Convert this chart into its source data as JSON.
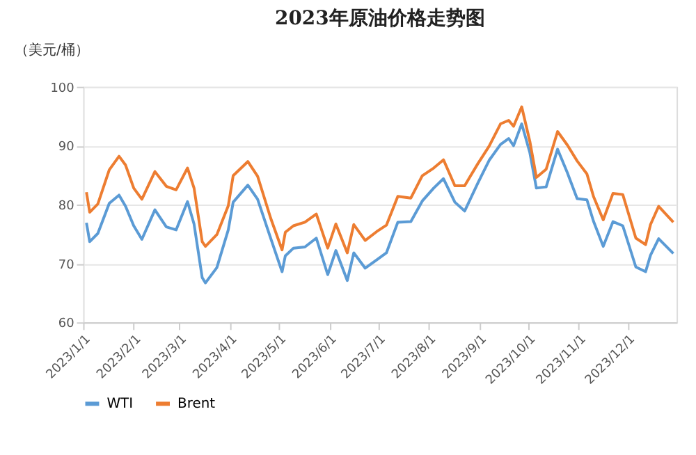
{
  "chart_data": {
    "type": "line",
    "title": "2023年原油价格走势图",
    "ylabel": "（美元/桶）",
    "xlim": [
      "2023-01-01",
      "2023-12-31"
    ],
    "xticks": [
      {
        "value": "2023-01-01",
        "label": "2023/1/1"
      },
      {
        "value": "2023-02-01",
        "label": "2023/2/1"
      },
      {
        "value": "2023-03-01",
        "label": "2023/3/1"
      },
      {
        "value": "2023-04-01",
        "label": "2023/4/1"
      },
      {
        "value": "2023-05-01",
        "label": "2023/5/1"
      },
      {
        "value": "2023-06-01",
        "label": "2023/6/1"
      },
      {
        "value": "2023-07-01",
        "label": "2023/7/1"
      },
      {
        "value": "2023-08-01",
        "label": "2023/8/1"
      },
      {
        "value": "2023-09-01",
        "label": "2023/9/1"
      },
      {
        "value": "2023-10-01",
        "label": "2023/10/1"
      },
      {
        "value": "2023-11-01",
        "label": "2023/11/1"
      },
      {
        "value": "2023-12-01",
        "label": "2023/12/1"
      }
    ],
    "ylim": [
      60,
      100
    ],
    "yticks": [
      60,
      70,
      80,
      90,
      100
    ],
    "grid": "y",
    "legend": "bottom",
    "marker": "none",
    "line_style": "solid",
    "x": [
      "2023-01-03",
      "2023-01-05",
      "2023-01-10",
      "2023-01-17",
      "2023-01-23",
      "2023-01-27",
      "2023-02-01",
      "2023-02-06",
      "2023-02-14",
      "2023-02-21",
      "2023-02-27",
      "2023-03-06",
      "2023-03-10",
      "2023-03-15",
      "2023-03-17",
      "2023-03-24",
      "2023-03-31",
      "2023-04-03",
      "2023-04-12",
      "2023-04-18",
      "2023-04-26",
      "2023-05-03",
      "2023-05-05",
      "2023-05-10",
      "2023-05-17",
      "2023-05-24",
      "2023-05-31",
      "2023-06-05",
      "2023-06-12",
      "2023-06-16",
      "2023-06-23",
      "2023-06-30",
      "2023-07-06",
      "2023-07-13",
      "2023-07-21",
      "2023-07-28",
      "2023-08-04",
      "2023-08-10",
      "2023-08-17",
      "2023-08-23",
      "2023-08-31",
      "2023-09-07",
      "2023-09-14",
      "2023-09-19",
      "2023-09-22",
      "2023-09-27",
      "2023-10-02",
      "2023-10-06",
      "2023-10-12",
      "2023-10-19",
      "2023-10-25",
      "2023-10-31",
      "2023-11-06",
      "2023-11-10",
      "2023-11-16",
      "2023-11-22",
      "2023-11-28",
      "2023-12-06",
      "2023-12-12",
      "2023-12-15",
      "2023-12-20",
      "2023-12-29"
    ],
    "series": [
      {
        "name": "WTI",
        "color": "#5b9bd5",
        "values": [
          76.9,
          73.7,
          75.1,
          80.2,
          81.6,
          79.7,
          76.4,
          74.1,
          79.1,
          76.2,
          75.7,
          80.5,
          76.7,
          67.6,
          66.7,
          69.3,
          75.7,
          80.4,
          83.3,
          80.9,
          74.3,
          68.6,
          71.3,
          72.6,
          72.8,
          74.3,
          68.1,
          72.2,
          67.1,
          71.8,
          69.2,
          70.6,
          71.8,
          77.0,
          77.1,
          80.6,
          82.8,
          84.4,
          80.4,
          78.9,
          83.6,
          87.5,
          90.2,
          91.2,
          90.0,
          93.7,
          88.8,
          82.8,
          83.0,
          89.4,
          85.4,
          81.0,
          80.8,
          77.2,
          72.9,
          77.1,
          76.4,
          69.4,
          68.6,
          71.4,
          74.2,
          71.7
        ]
      },
      {
        "name": "Brent",
        "color": "#ed7d31",
        "values": [
          82.1,
          78.7,
          80.1,
          85.9,
          88.2,
          86.7,
          82.8,
          80.9,
          85.6,
          83.1,
          82.5,
          86.2,
          82.8,
          73.7,
          72.9,
          74.9,
          79.8,
          84.9,
          87.3,
          84.8,
          77.7,
          72.3,
          75.3,
          76.4,
          77.0,
          78.4,
          72.6,
          76.7,
          71.8,
          76.6,
          73.9,
          75.4,
          76.5,
          81.4,
          81.1,
          84.9,
          86.2,
          87.6,
          83.2,
          83.2,
          86.9,
          89.9,
          93.7,
          94.3,
          93.3,
          96.6,
          90.7,
          84.6,
          86.0,
          92.4,
          90.1,
          87.4,
          85.2,
          81.4,
          77.4,
          81.9,
          81.7,
          74.3,
          73.2,
          76.6,
          79.7,
          77.0
        ]
      }
    ]
  }
}
